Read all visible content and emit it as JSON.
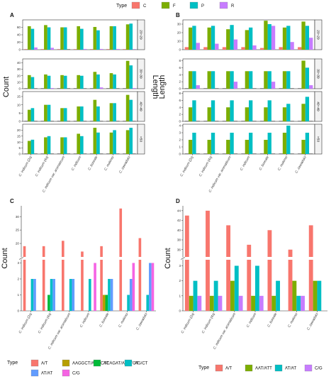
{
  "chart_data": [
    {
      "panel": "A",
      "type": "bar",
      "categories": [
        "C. indicum (2x)",
        "C. indicum (4x)",
        "C. indicum var. aromaticum",
        "C. indicum",
        "C. boreale",
        "C. makinoi",
        "C. zawadskii"
      ],
      "ylabel": "Count",
      "facet_label": "Length",
      "legend_title": "Type",
      "series_names": [
        "C",
        "F",
        "P",
        "R"
      ],
      "series_colors": [
        "#F8766D",
        "#7CAE00",
        "#00BFC4",
        "#C77CFF"
      ],
      "facets": [
        {
          "name": "20~29",
          "ylim": [
            0,
            80
          ],
          "ticks": [
            0,
            20,
            40,
            60
          ],
          "values": [
            [
              1,
              63,
              56,
              6
            ],
            [
              1,
              66,
              60,
              5
            ],
            [
              1,
              60,
              60,
              0
            ],
            [
              1,
              63,
              56,
              2
            ],
            [
              1,
              61,
              52,
              2
            ],
            [
              1,
              63,
              63,
              2
            ],
            [
              1,
              68,
              70,
              1
            ]
          ]
        },
        {
          "name": "30~39",
          "ylim": [
            0,
            46
          ],
          "ticks": [
            0,
            10,
            20,
            30,
            40
          ],
          "values": [
            [
              0,
              21,
              18,
              0
            ],
            [
              0,
              22,
              20,
              1
            ],
            [
              0,
              21,
              20,
              0
            ],
            [
              0,
              21,
              20,
              0
            ],
            [
              0,
              26,
              22,
              2
            ],
            [
              0,
              24,
              22,
              0
            ],
            [
              0,
              43,
              36,
              1
            ]
          ]
        },
        {
          "name": "40~49",
          "ylim": [
            0,
            18
          ],
          "ticks": [
            0,
            5,
            10,
            15
          ],
          "values": [
            [
              0,
              7,
              8,
              0
            ],
            [
              0,
              10,
              10,
              0
            ],
            [
              0,
              8,
              8,
              0
            ],
            [
              0,
              9,
              9,
              0
            ],
            [
              0,
              13,
              9,
              0
            ],
            [
              0,
              11,
              11,
              0
            ],
            [
              0,
              16,
              13,
              0
            ]
          ]
        },
        {
          "name": ">50",
          "ylim": [
            0,
            25
          ],
          "ticks": [
            0,
            5,
            10,
            15,
            20
          ],
          "values": [
            [
              0,
              11,
              12,
              0
            ],
            [
              0,
              14,
              15,
              0
            ],
            [
              0,
              14,
              14,
              0
            ],
            [
              0,
              17,
              15,
              0
            ],
            [
              0,
              22,
              18,
              0
            ],
            [
              0,
              18,
              20,
              0
            ],
            [
              0,
              20,
              22,
              0
            ]
          ]
        }
      ]
    },
    {
      "panel": "B",
      "type": "bar",
      "categories": [
        "C. indicum (2x)",
        "C. indicum (4x)",
        "C. indicum var. aromaticum",
        "C. indicum",
        "C. boreale",
        "C. makinoi",
        "C. zawadskii"
      ],
      "ylabel": "Length",
      "series_names": [
        "C",
        "F",
        "P",
        "R"
      ],
      "series_colors": [
        "#F8766D",
        "#7CAE00",
        "#00BFC4",
        "#C77CFF"
      ],
      "facets": [
        {
          "name": "20~29",
          "ylim": [
            0,
            35
          ],
          "ticks": [
            0,
            10,
            20,
            30
          ],
          "values": [
            [
              3,
              26,
              28,
              8
            ],
            [
              3,
              26,
              28,
              7
            ],
            [
              3,
              24,
              29,
              12
            ],
            [
              3,
              23,
              26,
              5
            ],
            [
              2,
              34,
              30,
              28
            ],
            [
              3,
              26,
              28,
              9
            ],
            [
              3,
              33,
              28,
              14
            ]
          ]
        },
        {
          "name": "30~39",
          "ylim": [
            0,
            8.5
          ],
          "ticks": [
            0,
            2,
            4,
            6,
            8
          ],
          "values": [
            [
              0,
              5,
              5,
              1
            ],
            [
              0,
              5,
              5,
              0
            ],
            [
              0,
              5,
              5,
              2
            ],
            [
              0,
              5,
              5,
              0
            ],
            [
              0,
              5,
              5,
              2
            ],
            [
              0,
              5,
              5,
              0
            ],
            [
              0,
              8,
              6,
              1
            ]
          ]
        },
        {
          "name": "40~49",
          "ylim": [
            0,
            8.5
          ],
          "ticks": [
            0,
            2,
            4,
            6,
            8
          ],
          "values": [
            [
              0,
              4,
              6,
              0
            ],
            [
              0,
              4,
              6,
              0
            ],
            [
              0,
              4,
              6,
              0
            ],
            [
              0,
              4,
              6,
              0
            ],
            [
              0,
              4,
              6,
              0
            ],
            [
              0,
              4,
              5,
              0
            ],
            [
              0,
              5,
              7,
              0
            ]
          ]
        },
        {
          "name": ">50",
          "ylim": [
            0,
            4.2
          ],
          "ticks": [
            0,
            1,
            2,
            3,
            4
          ],
          "values": [
            [
              0,
              2,
              3,
              0
            ],
            [
              0,
              2,
              3,
              0
            ],
            [
              0,
              2,
              3,
              0
            ],
            [
              0,
              2,
              3,
              0
            ],
            [
              0,
              2,
              3,
              0
            ],
            [
              0,
              3,
              4,
              0
            ],
            [
              0,
              2,
              3,
              0
            ]
          ]
        }
      ]
    },
    {
      "panel": "C",
      "type": "bar",
      "categories": [
        "C. indicum (2x)",
        "C. indicum (4x)",
        "C. indicum var. aromaticum",
        "C. indicum",
        "C. boreale",
        "C. makinoi",
        "C. zawadskii"
      ],
      "ylabel": "Count",
      "legend_title": "Type",
      "series_names": [
        "A/T",
        "AAGGCT/AGCCTT",
        "ACAGAT/ATCTGT",
        "AG/CT",
        "AT/AT",
        "C/G"
      ],
      "series_colors": [
        "#F8766D",
        "#B79F00",
        "#00BA38",
        "#00BFC4",
        "#619CFF",
        "#F564E3"
      ],
      "broken_axis": {
        "lower_range": [
          0,
          3.2
        ],
        "lower_ticks": [
          0,
          1,
          2,
          3
        ],
        "upper_range": [
          15,
          34
        ],
        "upper_ticks": [
          20,
          25,
          30
        ]
      },
      "values": [
        [
          19,
          0,
          0,
          2,
          2,
          0
        ],
        [
          19,
          0,
          1,
          2,
          2,
          0
        ],
        [
          21,
          0,
          0,
          2,
          2,
          0
        ],
        [
          17,
          0,
          0,
          2,
          0,
          3
        ],
        [
          19,
          1,
          1,
          2,
          2,
          0
        ],
        [
          33,
          0,
          0,
          1,
          2,
          3
        ],
        [
          22,
          0,
          0,
          1,
          3,
          3
        ]
      ]
    },
    {
      "panel": "D",
      "type": "bar",
      "categories": [
        "C. indicum (2x)",
        "C. indicum (4x)",
        "C. indicum var. aromaticum",
        "C. indicum",
        "C. boreale",
        "C. makinoi",
        "C. zawadskii"
      ],
      "ylabel": "Count",
      "legend_title": "Type",
      "series_names": [
        "A/T",
        "AAT/ATT",
        "AT/AT",
        "C/G"
      ],
      "series_colors": [
        "#F8766D",
        "#7CAE00",
        "#00BFC4",
        "#C77CFF"
      ],
      "broken_axis": {
        "lower_range": [
          0,
          3.4
        ],
        "lower_ticks": [
          0,
          1,
          2,
          3
        ],
        "upper_range": [
          34.5,
          45
        ],
        "upper_ticks": [
          36,
          38,
          40,
          42,
          44
        ]
      },
      "values": [
        [
          43,
          1,
          2,
          1
        ],
        [
          44,
          1,
          2,
          1
        ],
        [
          41,
          2,
          3,
          1
        ],
        [
          37,
          1,
          3,
          1
        ],
        [
          40,
          1,
          2,
          0
        ],
        [
          36,
          2,
          1,
          1
        ],
        [
          41,
          2,
          2,
          0
        ]
      ]
    }
  ]
}
